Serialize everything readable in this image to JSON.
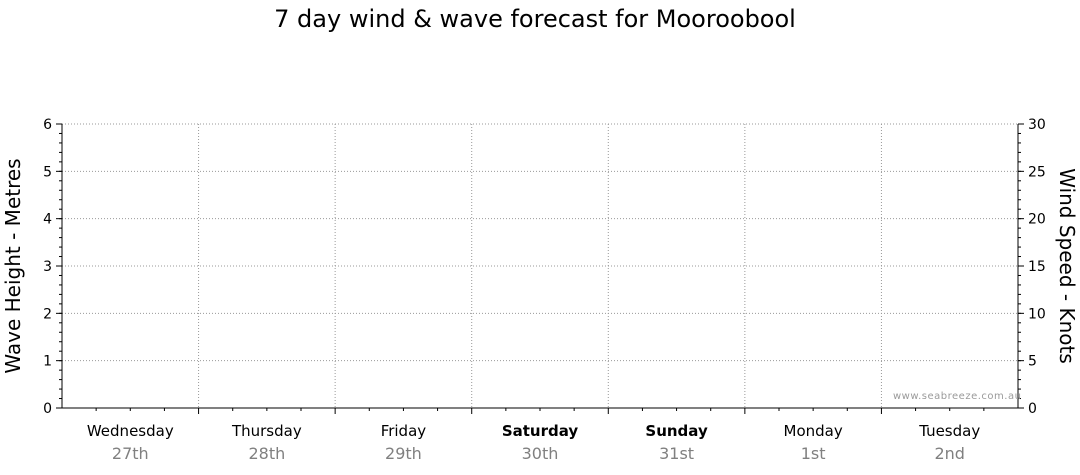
{
  "chart_data": {
    "type": "line",
    "title": "7 day wind & wave forecast for Mooroobool",
    "ylabel_left": "Wave Height - Metres",
    "ylabel_right": "Wind Speed - Knots",
    "ylim_left": [
      0,
      6
    ],
    "ylim_right": [
      0,
      30
    ],
    "yticks_left": [
      "0",
      "1",
      "2",
      "3",
      "4",
      "5",
      "6"
    ],
    "yticks_right": [
      "0",
      "5",
      "10",
      "15",
      "20",
      "25",
      "30"
    ],
    "days": [
      {
        "name": "Wednesday",
        "date": "27th",
        "bold": false
      },
      {
        "name": "Thursday",
        "date": "28th",
        "bold": false
      },
      {
        "name": "Friday",
        "date": "29th",
        "bold": false
      },
      {
        "name": "Saturday",
        "date": "30th",
        "bold": true
      },
      {
        "name": "Sunday",
        "date": "31st",
        "bold": true
      },
      {
        "name": "Monday",
        "date": "1st",
        "bold": false
      },
      {
        "name": "Tuesday",
        "date": "2nd",
        "bold": false
      }
    ],
    "series": [],
    "grid": true
  },
  "watermark": "www.seabreeze.com.au"
}
